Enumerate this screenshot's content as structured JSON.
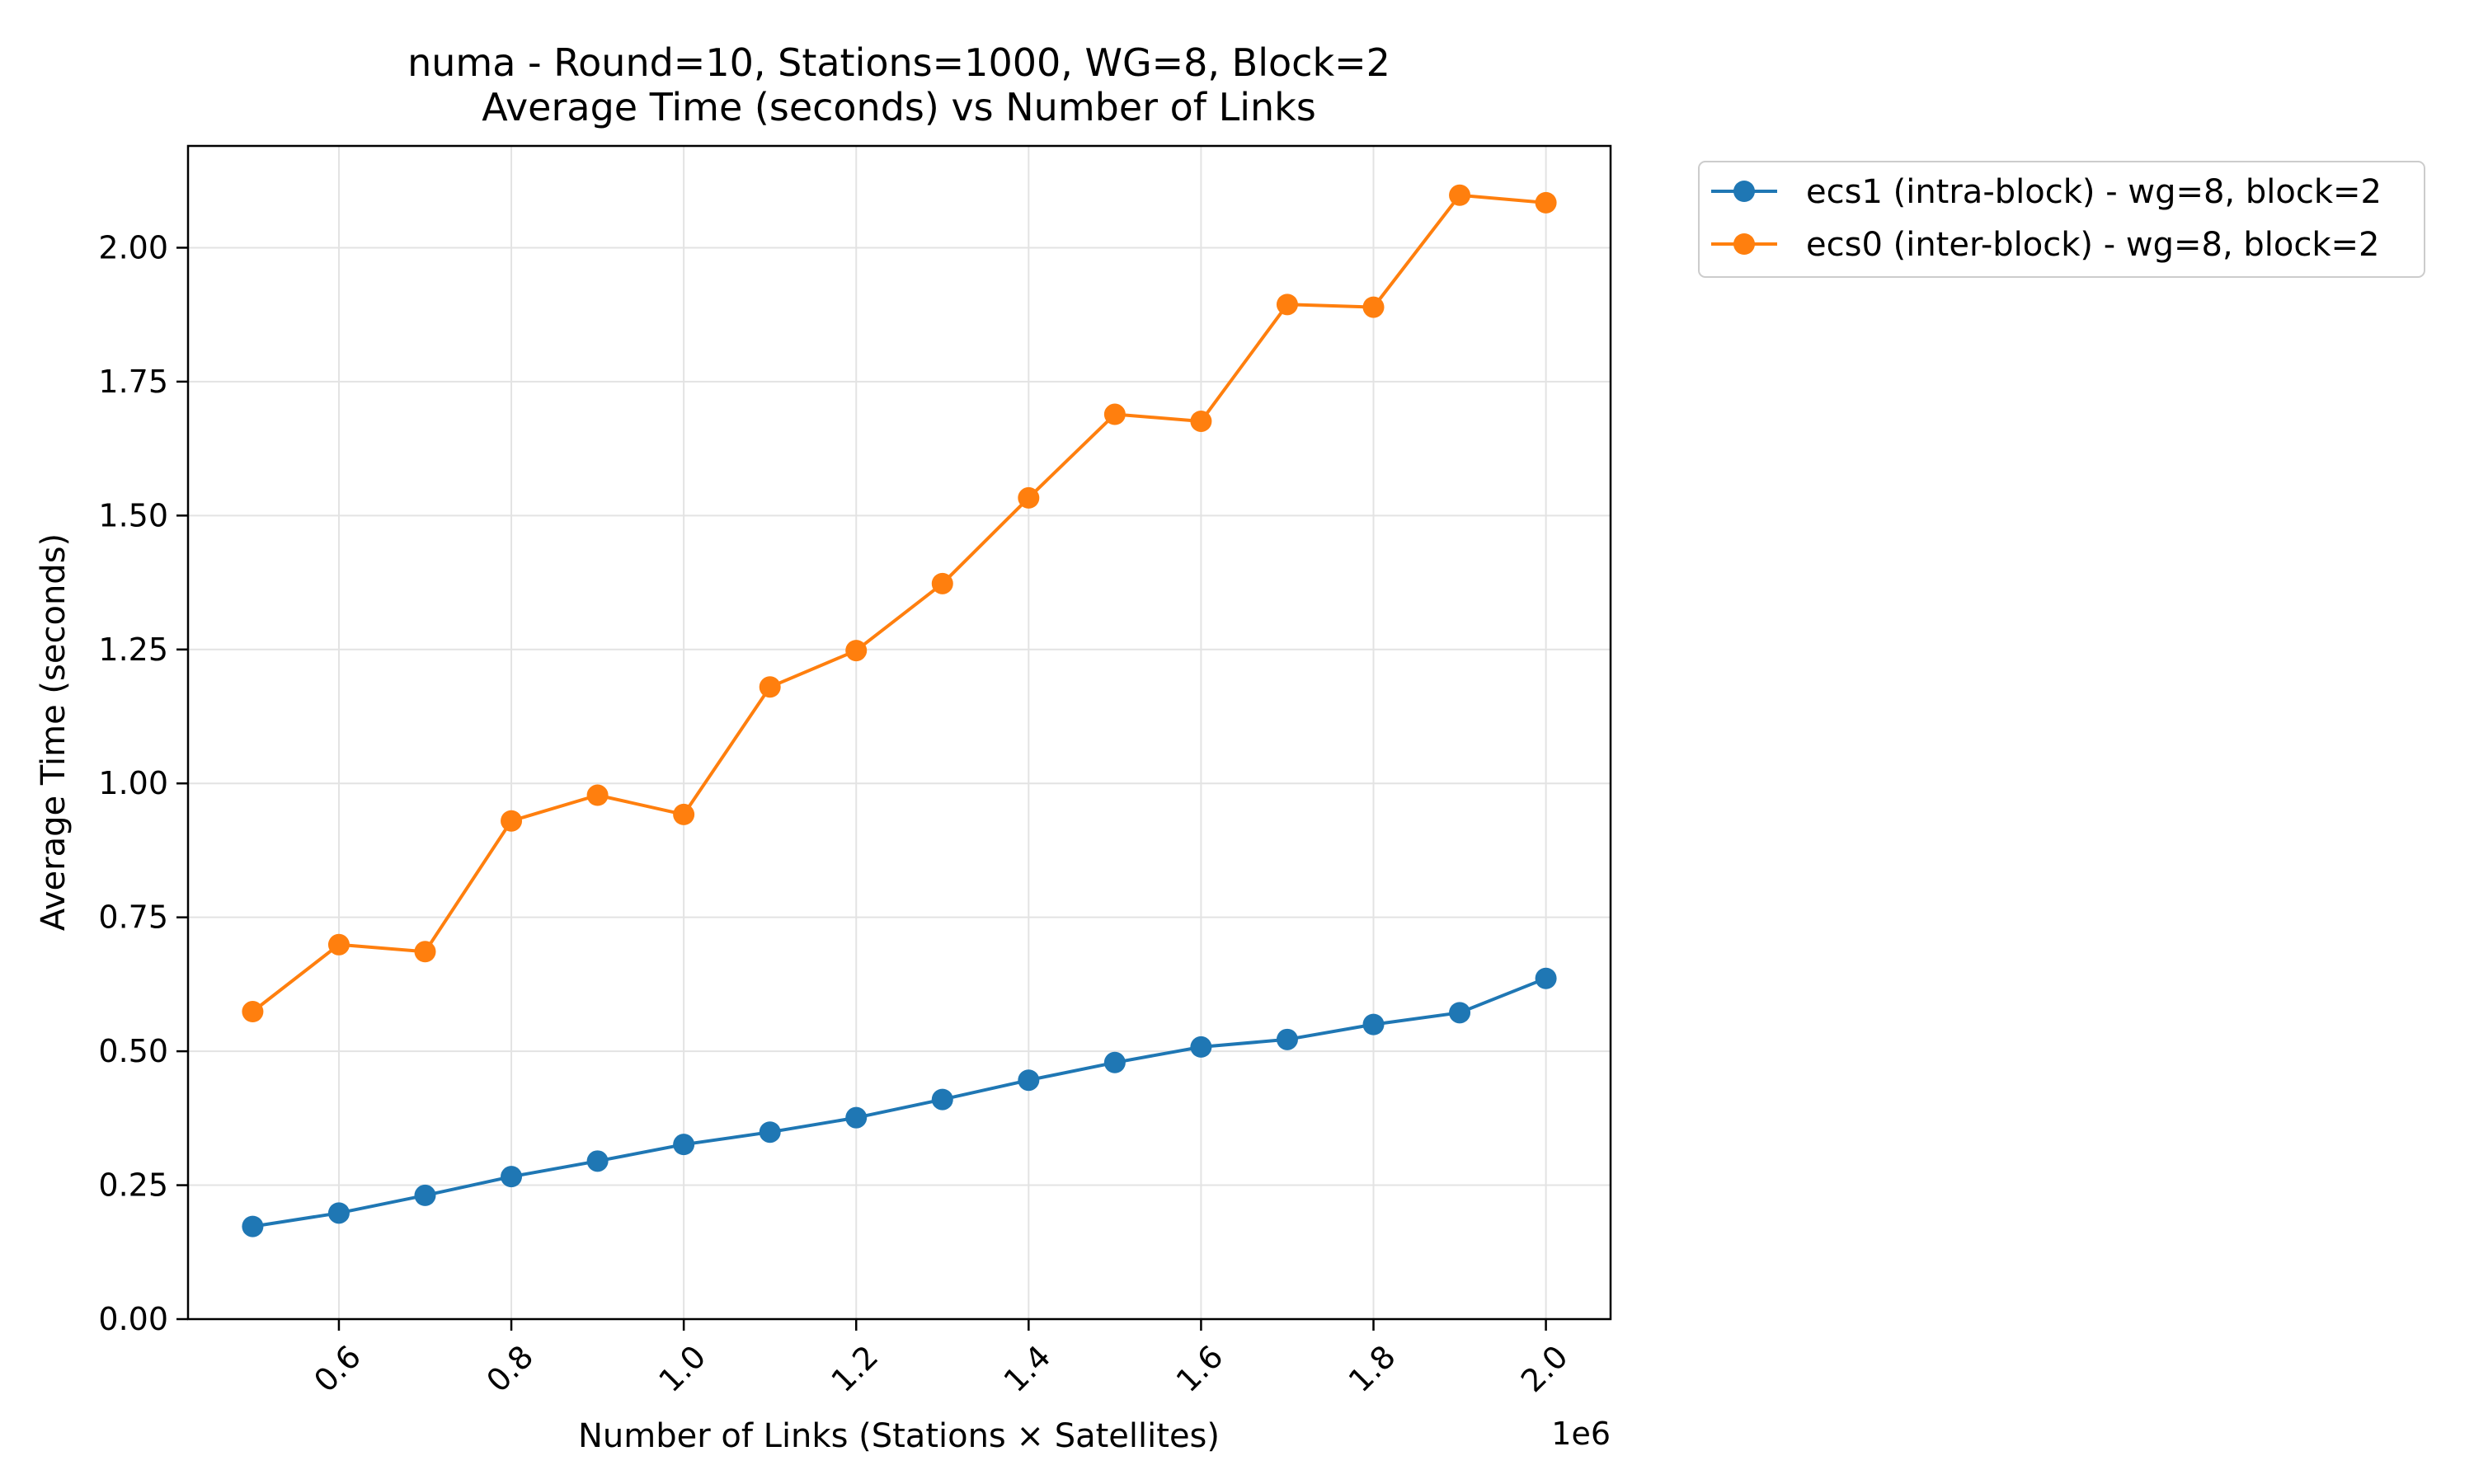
{
  "chart_data": {
    "type": "line",
    "title": "numa - Round=10, Stations=1000, WG=8, Block=2",
    "subtitle": "Average Time (seconds) vs Number of Links",
    "xlabel": "Number of Links (Stations × Satellites)",
    "ylabel": "Average Time (seconds)",
    "x_offset_label": "1e6",
    "x": [
      500000,
      600000,
      700000,
      800000,
      900000,
      1000000,
      1100000,
      1200000,
      1300000,
      1400000,
      1500000,
      1600000,
      1700000,
      1800000,
      1900000,
      2000000
    ],
    "xlim": [
      425000,
      2075000
    ],
    "ylim": [
      0.0,
      2.19
    ],
    "x_ticks": [
      600000,
      800000,
      1000000,
      1200000,
      1400000,
      1600000,
      1800000,
      2000000
    ],
    "x_tick_labels": [
      "0.6",
      "0.8",
      "1.0",
      "1.2",
      "1.4",
      "1.6",
      "1.8",
      "2.0"
    ],
    "y_ticks": [
      0.0,
      0.25,
      0.5,
      0.75,
      1.0,
      1.25,
      1.5,
      1.75,
      2.0
    ],
    "y_tick_labels": [
      "0.00",
      "0.25",
      "0.50",
      "0.75",
      "1.00",
      "1.25",
      "1.50",
      "1.75",
      "2.00"
    ],
    "grid": true,
    "legend_position": "outside-top-right",
    "series": [
      {
        "name": "ecs1 (intra-block) - wg=8, block=2",
        "color": "#1f77b4",
        "values": [
          0.173,
          0.198,
          0.231,
          0.266,
          0.295,
          0.326,
          0.349,
          0.376,
          0.41,
          0.446,
          0.479,
          0.508,
          0.522,
          0.55,
          0.572,
          0.636
        ]
      },
      {
        "name": "ecs0 (inter-block) - wg=8, block=2",
        "color": "#ff7f0e",
        "values": [
          0.574,
          0.699,
          0.686,
          0.93,
          0.978,
          0.942,
          1.18,
          1.248,
          1.373,
          1.533,
          1.689,
          1.676,
          1.894,
          1.889,
          2.098,
          2.084
        ]
      }
    ]
  }
}
